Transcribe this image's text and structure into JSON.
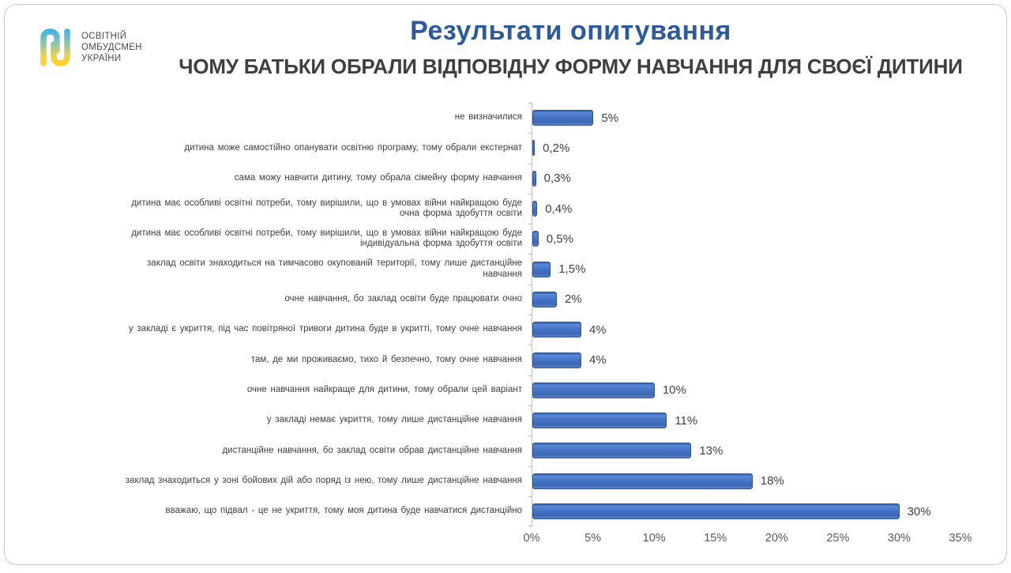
{
  "logo": {
    "line1": "ОСВІТНІЙ",
    "line2": "ОМБУДСМЕН",
    "line3": "УКРАЇНИ"
  },
  "colors": {
    "title_blue": "#2b5a9e",
    "subtitle_gray": "#3f3f3f",
    "bar_blue": "#4472c4",
    "bar_border": "#2d5392",
    "axis_gray": "#bfbfbf"
  },
  "chart_data": {
    "type": "bar",
    "orientation": "horizontal",
    "title": "Результати опитування",
    "subtitle": "ЧОМУ БАТЬКИ ОБРАЛИ ВІДПОВІДНУ ФОРМУ НАВЧАННЯ ДЛЯ СВОЄЇ ДИТИНИ",
    "categories": [
      "не визначилися",
      "дитина може самостійно опанувати освітню програму, тому обрали екстернат",
      "сама можу навчити дитину, тому обрала сімейну форму навчання",
      "дитина має особливі освітні потреби, тому вирішили, що в умовах війни найкращою буде очна форма здобуття освіти",
      "дитина має особливі освітні потреби, тому вирішили, що в умовах війни найкращою буде індивідуальна форма здобуття освіти",
      "заклад освіти знаходиться на тимчасово окупованій території, тому лише дистанційне навчання",
      "очне навчання, бо заклад освіти буде працювати очно",
      "у закладі є укриття, під час повітряної тривоги дитина буде в укритті, тому очне навчання",
      "там, де ми проживаємо, тихо й безпечно, тому очне навчання",
      "очне навчання найкраще для дитини, тому обрали цей варіант",
      "у закладі немає укриття, тому лише дистанційне навчання",
      "дистанційне навчання, бо заклад освіти обрав дистанційне навчання",
      "заклад знаходиться у зоні бойових дій або поряд із нею, тому лише дистанційне навчання",
      "вважаю, що підвал - це не укриття, тому моя дитина буде навчатися дистанційно"
    ],
    "values": [
      5,
      0.2,
      0.3,
      0.4,
      0.5,
      1.5,
      2,
      4,
      4,
      10,
      11,
      13,
      18,
      30
    ],
    "value_labels": [
      "5%",
      "0,2%",
      "0,3%",
      "0,4%",
      "0,5%",
      "1,5%",
      "2%",
      "4%",
      "4%",
      "10%",
      "11%",
      "13%",
      "18%",
      "30%"
    ],
    "xlabel": "",
    "ylabel": "",
    "xlim": [
      0,
      35
    ],
    "x_ticks": [
      "0%",
      "5%",
      "10%",
      "15%",
      "20%",
      "25%",
      "30%",
      "35%"
    ],
    "grid": false,
    "legend": false
  }
}
